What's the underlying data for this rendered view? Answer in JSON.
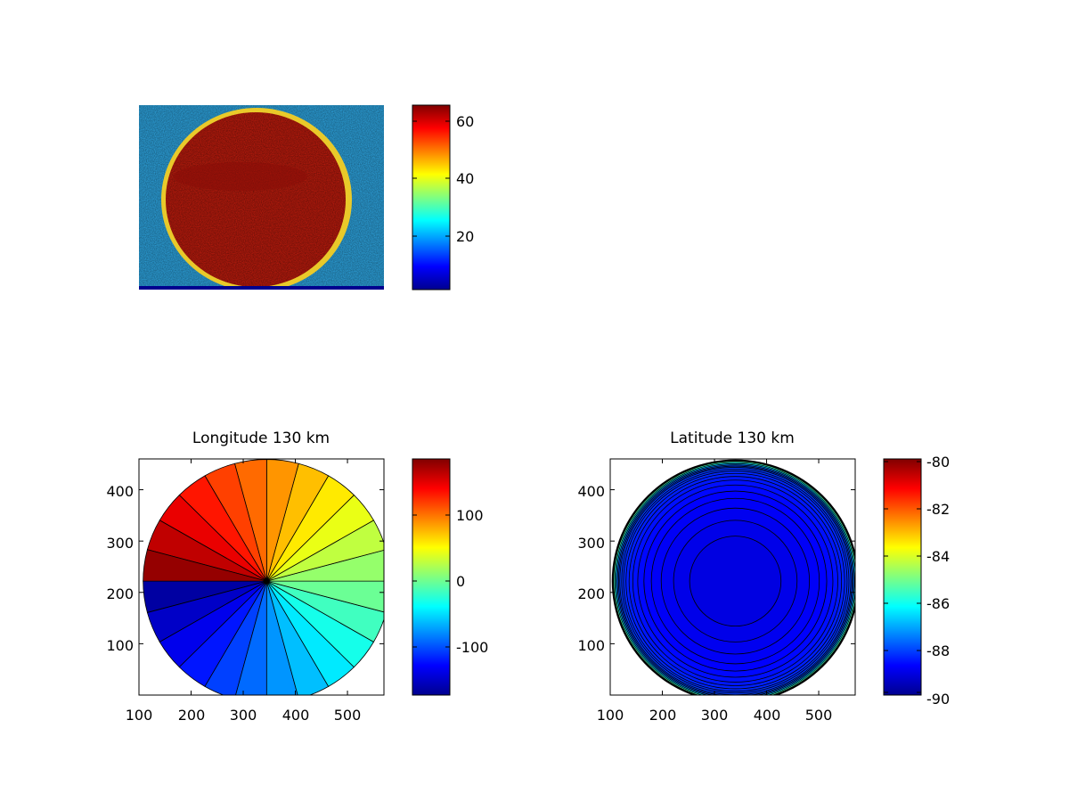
{
  "colormap": "jet",
  "chart_data": [
    {
      "type": "heatmap",
      "title": "",
      "description_content": "image",
      "colorbar": {
        "ticks": [
          "20",
          "40",
          "60"
        ],
        "range": [
          1,
          65
        ]
      },
      "axes_visible": false
    },
    {
      "type": "heatmap",
      "title": "Longitude 130 km",
      "xlim": [
        100,
        570
      ],
      "ylim": [
        0,
        460
      ],
      "xticks": [
        "100",
        "200",
        "300",
        "400",
        "500"
      ],
      "yticks": [
        "100",
        "200",
        "300",
        "400"
      ],
      "center": [
        345,
        222
      ],
      "radius": 237,
      "sectors": 24,
      "value_range": [
        -180,
        180
      ],
      "colorbar": {
        "ticks": [
          "100",
          "0",
          "-100"
        ],
        "range": [
          -180,
          180
        ]
      }
    },
    {
      "type": "heatmap",
      "title": "Latitude 130 km",
      "xlim": [
        100,
        570
      ],
      "ylim": [
        0,
        460
      ],
      "xticks": [
        "100",
        "200",
        "300",
        "400",
        "500"
      ],
      "yticks": [
        "100",
        "200",
        "300",
        "400"
      ],
      "center": [
        340,
        222
      ],
      "radius": 237,
      "contour_levels": 20,
      "value_range": [
        -90,
        -80
      ],
      "colorbar": {
        "ticks": [
          "-80",
          "-82",
          "-84",
          "-86",
          "-88",
          "-90"
        ],
        "range": [
          -90,
          -80
        ]
      }
    }
  ]
}
